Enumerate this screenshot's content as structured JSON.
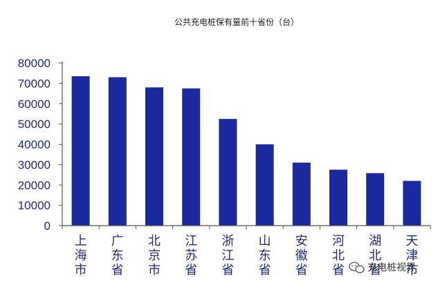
{
  "chart_data": {
    "type": "bar",
    "title": "公共充电桩保有量前十省份（台）",
    "categories": [
      "上海市",
      "广东省",
      "北京市",
      "江苏省",
      "浙江省",
      "山东省",
      "安徽省",
      "河北省",
      "湖北省",
      "天津市"
    ],
    "values": [
      73500,
      73000,
      68000,
      67500,
      52500,
      40000,
      31000,
      27500,
      25800,
      22000
    ],
    "ylim": [
      0,
      80000
    ],
    "yticks": [
      0,
      10000,
      20000,
      30000,
      40000,
      50000,
      60000,
      70000,
      80000
    ],
    "xlabel": "",
    "ylabel": "",
    "grid": false,
    "bar_color": "#1a2a9e",
    "axis_color": "#555555"
  },
  "watermark": {
    "text": "充电桩视界",
    "icon": "wechat-icon"
  }
}
